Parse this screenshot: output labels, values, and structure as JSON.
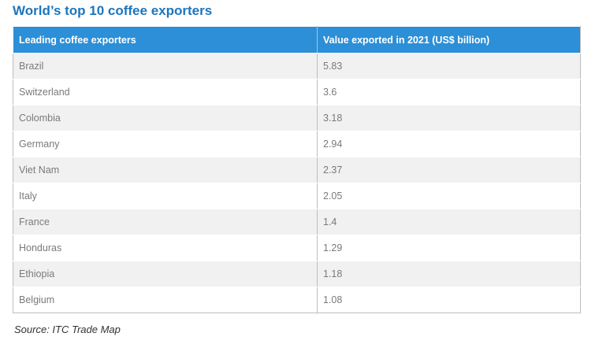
{
  "title": "World’s top 10 coffee exporters",
  "source": "Source: ITC Trade Map",
  "chart_data": {
    "type": "table",
    "title": "World’s top 10 coffee exporters",
    "columns": [
      "Leading coffee exporters",
      "Value exported in 2021 (US$  billion)"
    ],
    "rows": [
      [
        "Brazil",
        "5.83"
      ],
      [
        "Switzerland",
        "3.6"
      ],
      [
        "Colombia",
        "3.18"
      ],
      [
        "Germany",
        "2.94"
      ],
      [
        "Viet Nam",
        "2.37"
      ],
      [
        "Italy",
        "2.05"
      ],
      [
        "France",
        "1.4"
      ],
      [
        "Honduras",
        "1.29"
      ],
      [
        "Ethiopia",
        "1.18"
      ],
      [
        "Belgium",
        "1.08"
      ]
    ]
  },
  "colors": {
    "title": "#1d75bc",
    "header_bg": "#2c8fd7",
    "row_alt": "#f1f1f1"
  }
}
